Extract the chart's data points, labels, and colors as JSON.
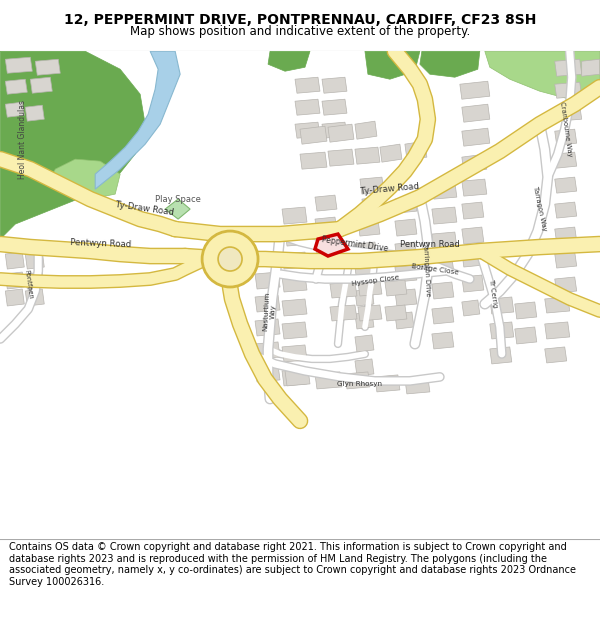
{
  "title_line1": "12, PEPPERMINT DRIVE, PONTPRENNAU, CARDIFF, CF23 8SH",
  "title_line2": "Map shows position and indicative extent of the property.",
  "footer_text": "Contains OS data © Crown copyright and database right 2021. This information is subject to Crown copyright and database rights 2023 and is reproduced with the permission of HM Land Registry. The polygons (including the associated geometry, namely x, y co-ordinates) are subject to Crown copyright and database rights 2023 Ordnance Survey 100026316.",
  "map_bg": "#ffffff",
  "road_color": "#ffffff",
  "road_outline_color": "#c8c8c8",
  "major_road_color": "#faf0b0",
  "major_road_outline": "#d4b840",
  "building_color": "#d8d5d0",
  "building_outline": "#b8b5b0",
  "green_color": "#6aaa50",
  "green_light": "#a8d88a",
  "water_color": "#a8d0e8",
  "play_space_color": "#b8e0b0",
  "highlight_color": "#cc0000",
  "highlight_fill": "#f8e0e0",
  "header_bg": "#ffffff",
  "footer_bg": "#ffffff"
}
